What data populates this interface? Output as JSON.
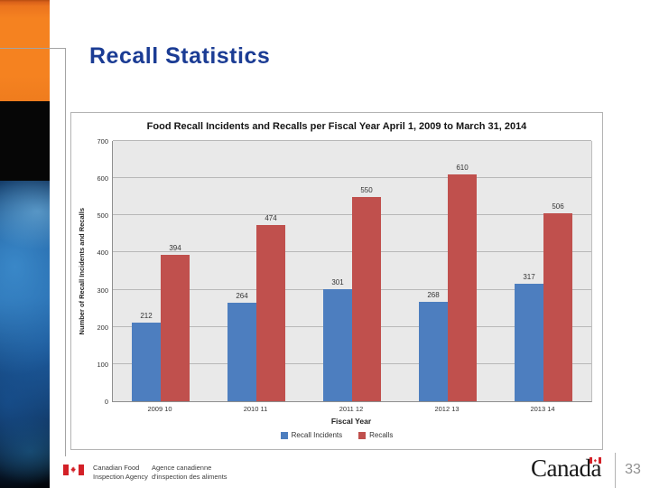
{
  "slide": {
    "title": "Recall Statistics"
  },
  "chart_data": {
    "type": "bar",
    "title": "Food Recall Incidents and Recalls per Fiscal Year April 1, 2009 to March 31, 2014",
    "categories": [
      "2009 10",
      "2010 11",
      "2011 12",
      "2012 13",
      "2013 14"
    ],
    "series": [
      {
        "name": "Recall Incidents",
        "color": "#4d7ebf",
        "values": [
          212,
          264,
          301,
          268,
          317
        ]
      },
      {
        "name": "Recalls",
        "color": "#c0504d",
        "values": [
          394,
          474,
          550,
          610,
          506
        ]
      }
    ],
    "xlabel": "Fiscal Year",
    "ylabel": "Number of Recall Incidents and Recalls",
    "ylim": [
      0,
      700
    ],
    "ytick_step": 100,
    "grid": true,
    "legend_position": "bottom",
    "plot_background": "#e9e9e9"
  },
  "footer": {
    "agency_en_line1": "Canadian Food",
    "agency_en_line2": "Inspection Agency",
    "agency_fr_line1": "Agence canadienne",
    "agency_fr_line2": "d'inspection des aliments",
    "wordmark": "Canada",
    "page_number": "33"
  },
  "colors": {
    "title_text": "#1b3c94",
    "sidebar_orange": "#f58220",
    "bar_blue": "#4d7ebf",
    "bar_red": "#c0504d",
    "flag_red": "#d32027"
  }
}
